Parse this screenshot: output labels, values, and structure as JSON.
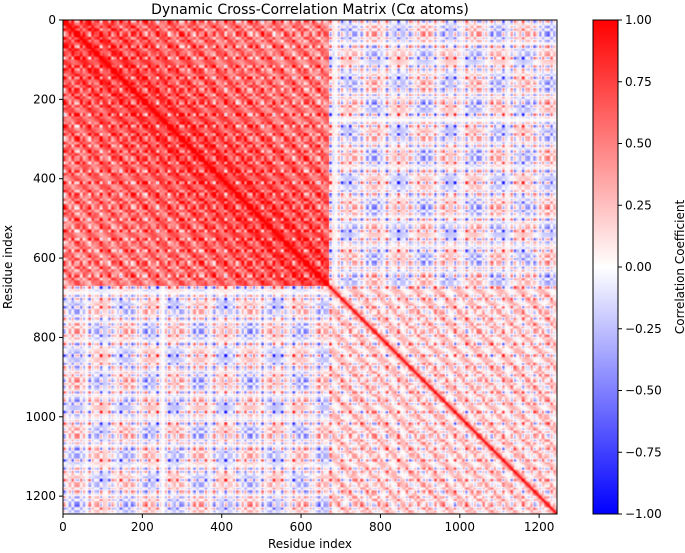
{
  "chart_data": {
    "type": "heatmap",
    "title": "Dynamic Cross-Correlation Matrix (Cα atoms)",
    "xlabel": "Residue index",
    "ylabel": "Residue index",
    "n_residues": 1245,
    "xlim": [
      0,
      1245
    ],
    "ylim": [
      1245,
      0
    ],
    "x_ticks": [
      "0",
      "200",
      "400",
      "600",
      "800",
      "1000",
      "1200"
    ],
    "y_ticks": [
      "0",
      "200",
      "400",
      "600",
      "800",
      "1000",
      "1200"
    ],
    "colormap": "bwr",
    "vmin": -1.0,
    "vmax": 1.0,
    "colorbar_label": "Correlation Coefficient",
    "colorbar_ticks": [
      "1.00",
      "0.75",
      "0.50",
      "0.25",
      "0.00",
      "−0.25",
      "−0.50",
      "−0.75",
      "−1.00"
    ],
    "colors": {
      "low": "#0000ff",
      "mid": "#ffffff",
      "high": "#ff0000"
    },
    "domains": [
      {
        "start": 0,
        "end": 670
      },
      {
        "start": 670,
        "end": 1245
      }
    ],
    "block_correlation": {
      "domain1_vs_domain1": 0.45,
      "domain2_vs_domain2": 0.15,
      "domain1_vs_domain2": 0.0
    },
    "diagonal": 1.0
  }
}
